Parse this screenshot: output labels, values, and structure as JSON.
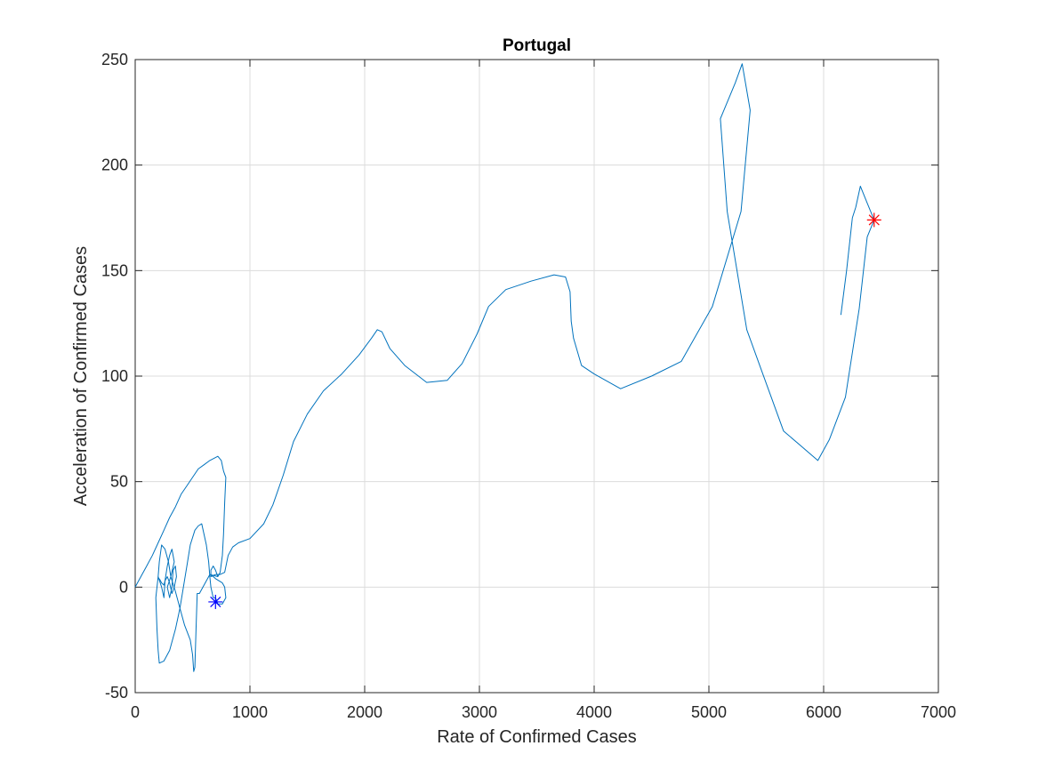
{
  "chart_data": {
    "type": "line",
    "title": "Portugal",
    "xlabel": "Rate of Confirmed Cases",
    "ylabel": "Acceleration of Confirmed Cases",
    "xlim": [
      0,
      7000
    ],
    "ylim": [
      -50,
      250
    ],
    "x_ticks": [
      0,
      1000,
      2000,
      3000,
      4000,
      5000,
      6000,
      7000
    ],
    "y_ticks": [
      -50,
      0,
      50,
      100,
      150,
      200,
      250
    ],
    "grid": true,
    "legend": "none",
    "colors": {
      "line": "#0072BD",
      "start_marker": "#0000FF",
      "end_marker": "#FF0000",
      "grid": "#DCDCDC",
      "axis": "#262626"
    },
    "series": [
      {
        "values_xy": [
          [
            0,
            0
          ],
          [
            50,
            5
          ],
          [
            100,
            10
          ],
          [
            150,
            15
          ],
          [
            200,
            21
          ],
          [
            250,
            27
          ],
          [
            300,
            33
          ],
          [
            350,
            38
          ],
          [
            400,
            44
          ],
          [
            450,
            48
          ],
          [
            500,
            52
          ],
          [
            550,
            56
          ],
          [
            600,
            58
          ],
          [
            650,
            60
          ],
          [
            720,
            62
          ],
          [
            750,
            60
          ],
          [
            770,
            55
          ],
          [
            790,
            52
          ],
          [
            780,
            40
          ],
          [
            770,
            25
          ],
          [
            760,
            15
          ],
          [
            740,
            7
          ],
          [
            720,
            5
          ],
          [
            700,
            8
          ],
          [
            680,
            10
          ],
          [
            660,
            8
          ],
          [
            660,
            5
          ],
          [
            700,
            6
          ],
          [
            740,
            6
          ],
          [
            780,
            7
          ],
          [
            810,
            15
          ],
          [
            850,
            19
          ],
          [
            900,
            21
          ],
          [
            1000,
            23
          ],
          [
            1120,
            30
          ],
          [
            1200,
            39
          ],
          [
            1290,
            53
          ],
          [
            1380,
            69
          ],
          [
            1500,
            82
          ],
          [
            1640,
            93
          ],
          [
            1800,
            101
          ],
          [
            1950,
            110
          ],
          [
            2060,
            118
          ],
          [
            2110,
            122
          ],
          [
            2150,
            121
          ],
          [
            2220,
            113
          ],
          [
            2350,
            105
          ],
          [
            2540,
            97
          ],
          [
            2720,
            98
          ],
          [
            2850,
            106
          ],
          [
            2980,
            120
          ],
          [
            3080,
            133
          ],
          [
            3230,
            141
          ],
          [
            3450,
            145
          ],
          [
            3650,
            148
          ],
          [
            3750,
            147
          ],
          [
            3790,
            140
          ],
          [
            3800,
            126
          ],
          [
            3820,
            118
          ],
          [
            3890,
            105
          ],
          [
            4000,
            101
          ],
          [
            4230,
            94
          ],
          [
            4500,
            100
          ],
          [
            4760,
            107
          ],
          [
            5030,
            133
          ],
          [
            5280,
            178
          ],
          [
            5360,
            226
          ],
          [
            5290,
            248
          ],
          [
            5230,
            239
          ],
          [
            5100,
            222
          ],
          [
            5160,
            178
          ],
          [
            5330,
            122
          ],
          [
            5470,
            101
          ],
          [
            5650,
            74
          ],
          [
            5800,
            67
          ],
          [
            5950,
            60
          ],
          [
            6050,
            70
          ],
          [
            6190,
            90
          ],
          [
            6310,
            132
          ],
          [
            6380,
            166
          ],
          [
            6440,
            174
          ],
          [
            6380,
            182
          ],
          [
            6320,
            190
          ],
          [
            6280,
            180
          ],
          [
            6250,
            175
          ],
          [
            6200,
            150
          ],
          [
            6150,
            129
          ]
        ],
        "loop_xy": [
          [
            720,
            5
          ],
          [
            650,
            6
          ],
          [
            560,
            -3
          ],
          [
            540,
            -3
          ],
          [
            530,
            -20
          ],
          [
            520,
            -38
          ],
          [
            510,
            -40
          ],
          [
            500,
            -32
          ],
          [
            480,
            -25
          ],
          [
            430,
            -18
          ],
          [
            390,
            -10
          ],
          [
            350,
            -2
          ],
          [
            310,
            5
          ],
          [
            290,
            12
          ],
          [
            260,
            18
          ],
          [
            230,
            20
          ],
          [
            210,
            12
          ],
          [
            200,
            5
          ],
          [
            190,
            0
          ],
          [
            180,
            -5
          ],
          [
            190,
            -20
          ],
          [
            200,
            -30
          ],
          [
            210,
            -36
          ],
          [
            250,
            -35
          ],
          [
            300,
            -30
          ],
          [
            350,
            -20
          ],
          [
            390,
            -10
          ],
          [
            420,
            0
          ],
          [
            450,
            10
          ],
          [
            480,
            20
          ],
          [
            520,
            27
          ],
          [
            550,
            29
          ],
          [
            580,
            30
          ],
          [
            600,
            25
          ],
          [
            620,
            20
          ],
          [
            640,
            12
          ],
          [
            650,
            5
          ],
          [
            660,
            0
          ],
          [
            680,
            -5
          ],
          [
            700,
            -5
          ],
          [
            720,
            -8
          ],
          [
            760,
            -8
          ],
          [
            790,
            -5
          ],
          [
            780,
            0
          ],
          [
            760,
            2
          ],
          [
            730,
            3
          ],
          [
            700,
            4
          ],
          [
            660,
            6
          ]
        ],
        "wiggle_xy": [
          [
            200,
            5
          ],
          [
            230,
            0
          ],
          [
            250,
            -5
          ],
          [
            260,
            3
          ],
          [
            280,
            10
          ],
          [
            300,
            15
          ],
          [
            320,
            18
          ],
          [
            340,
            12
          ],
          [
            310,
            5
          ],
          [
            280,
            0
          ],
          [
            300,
            -5
          ],
          [
            320,
            0
          ],
          [
            330,
            8
          ],
          [
            350,
            10
          ],
          [
            360,
            5
          ],
          [
            340,
            0
          ],
          [
            320,
            -3
          ],
          [
            300,
            2
          ],
          [
            280,
            5
          ],
          [
            260,
            3
          ],
          [
            250,
            1
          ],
          [
            230,
            2
          ],
          [
            210,
            4
          ]
        ]
      }
    ],
    "start_marker": {
      "x": 700,
      "y": -7,
      "symbol": "*"
    },
    "end_marker": {
      "x": 6440,
      "y": 174,
      "symbol": "*"
    }
  }
}
